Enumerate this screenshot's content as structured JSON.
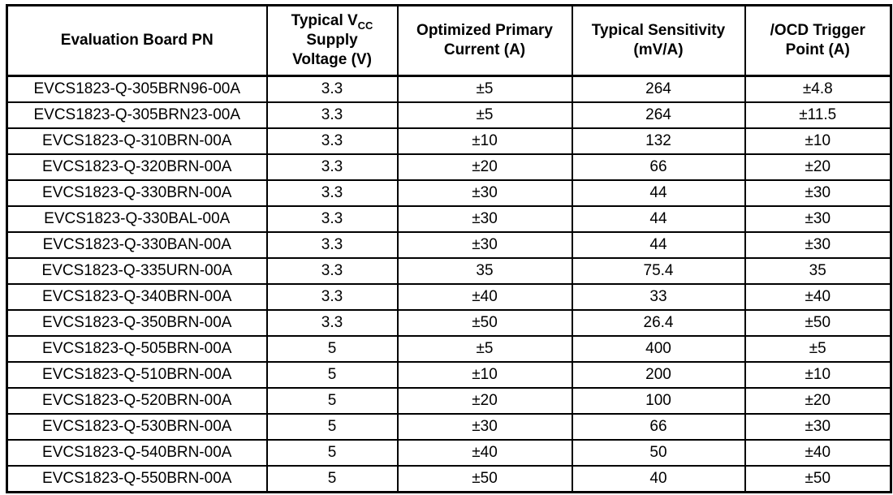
{
  "colors": {
    "border": "#000000",
    "background": "#ffffff",
    "text": "#000000"
  },
  "table": {
    "column_keys": [
      "pn",
      "vcc",
      "current",
      "sensitivity",
      "ocd"
    ],
    "headers": {
      "pn": "Evaluation Board PN",
      "vcc": {
        "prefix": "Typical V",
        "subscript": "CC",
        "line2": "Supply",
        "line3": "Voltage (V)"
      },
      "current": "Optimized Primary Current (A)",
      "sensitivity": "Typical Sensitivity (mV/A)",
      "ocd": "/OCD Trigger Point (A)"
    },
    "rows": [
      {
        "pn": "EVCS1823-Q-305BRN96-00A",
        "vcc": "3.3",
        "current": "±5",
        "sensitivity": "264",
        "ocd": "±4.8"
      },
      {
        "pn": "EVCS1823-Q-305BRN23-00A",
        "vcc": "3.3",
        "current": "±5",
        "sensitivity": "264",
        "ocd": "±11.5"
      },
      {
        "pn": "EVCS1823-Q-310BRN-00A",
        "vcc": "3.3",
        "current": "±10",
        "sensitivity": "132",
        "ocd": "±10"
      },
      {
        "pn": "EVCS1823-Q-320BRN-00A",
        "vcc": "3.3",
        "current": "±20",
        "sensitivity": "66",
        "ocd": "±20"
      },
      {
        "pn": "EVCS1823-Q-330BRN-00A",
        "vcc": "3.3",
        "current": "±30",
        "sensitivity": "44",
        "ocd": "±30"
      },
      {
        "pn": "EVCS1823-Q-330BAL-00A",
        "vcc": "3.3",
        "current": "±30",
        "sensitivity": "44",
        "ocd": "±30"
      },
      {
        "pn": "EVCS1823-Q-330BAN-00A",
        "vcc": "3.3",
        "current": "±30",
        "sensitivity": "44",
        "ocd": "±30"
      },
      {
        "pn": "EVCS1823-Q-335URN-00A",
        "vcc": "3.3",
        "current": "35",
        "sensitivity": "75.4",
        "ocd": "35"
      },
      {
        "pn": "EVCS1823-Q-340BRN-00A",
        "vcc": "3.3",
        "current": "±40",
        "sensitivity": "33",
        "ocd": "±40"
      },
      {
        "pn": "EVCS1823-Q-350BRN-00A",
        "vcc": "3.3",
        "current": "±50",
        "sensitivity": "26.4",
        "ocd": "±50"
      },
      {
        "pn": "EVCS1823-Q-505BRN-00A",
        "vcc": "5",
        "current": "±5",
        "sensitivity": "400",
        "ocd": "±5"
      },
      {
        "pn": "EVCS1823-Q-510BRN-00A",
        "vcc": "5",
        "current": "±10",
        "sensitivity": "200",
        "ocd": "±10"
      },
      {
        "pn": "EVCS1823-Q-520BRN-00A",
        "vcc": "5",
        "current": "±20",
        "sensitivity": "100",
        "ocd": "±20"
      },
      {
        "pn": "EVCS1823-Q-530BRN-00A",
        "vcc": "5",
        "current": "±30",
        "sensitivity": "66",
        "ocd": "±30"
      },
      {
        "pn": "EVCS1823-Q-540BRN-00A",
        "vcc": "5",
        "current": "±40",
        "sensitivity": "50",
        "ocd": "±40"
      },
      {
        "pn": "EVCS1823-Q-550BRN-00A",
        "vcc": "5",
        "current": "±50",
        "sensitivity": "40",
        "ocd": "±50"
      }
    ]
  }
}
